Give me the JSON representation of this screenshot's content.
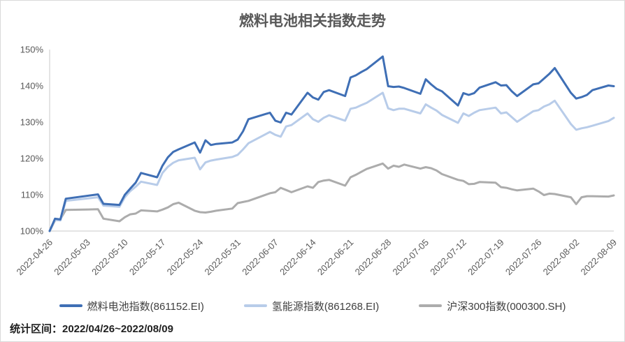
{
  "title": "燃料电池相关指数走势",
  "footer": {
    "text": "统计区间：2022/04/26~2022/08/09"
  },
  "colors": {
    "fuel_cell": "#3F6FB5",
    "hydrogen": "#B8CCE9",
    "csi300": "#ACACAC",
    "axis_line": "#C8C8C8",
    "label_gray": "#595959"
  },
  "chart_data": {
    "type": "line",
    "title": "燃料电池相关指数走势",
    "unit": "%",
    "grid": false,
    "legend_position": "bottom",
    "ylim": [
      100,
      150
    ],
    "y_tick_labels": [
      "100%",
      "110%",
      "120%",
      "130%",
      "140%",
      "150%"
    ],
    "x_tick_labels": [
      "2022-04-26",
      "2022-05-03",
      "2022-05-10",
      "2022-05-17",
      "2022-05-24",
      "2022-05-31",
      "2022-06-07",
      "2022-06-14",
      "2022-06-21",
      "2022-06-28",
      "2022-07-05",
      "2022-07-12",
      "2022-07-19",
      "2022-07-26",
      "2022-08-02",
      "2022-08-09"
    ],
    "x": [
      "2022-04-26",
      "2022-04-27",
      "2022-04-28",
      "2022-04-29",
      "2022-05-05",
      "2022-05-06",
      "2022-05-09",
      "2022-05-10",
      "2022-05-11",
      "2022-05-12",
      "2022-05-13",
      "2022-05-16",
      "2022-05-17",
      "2022-05-18",
      "2022-05-19",
      "2022-05-20",
      "2022-05-23",
      "2022-05-24",
      "2022-05-25",
      "2022-05-26",
      "2022-05-27",
      "2022-05-30",
      "2022-05-31",
      "2022-06-01",
      "2022-06-02",
      "2022-06-06",
      "2022-06-07",
      "2022-06-08",
      "2022-06-09",
      "2022-06-10",
      "2022-06-13",
      "2022-06-14",
      "2022-06-15",
      "2022-06-16",
      "2022-06-17",
      "2022-06-20",
      "2022-06-21",
      "2022-06-22",
      "2022-06-23",
      "2022-06-24",
      "2022-06-27",
      "2022-06-28",
      "2022-06-29",
      "2022-06-30",
      "2022-07-01",
      "2022-07-04",
      "2022-07-05",
      "2022-07-06",
      "2022-07-07",
      "2022-07-08",
      "2022-07-11",
      "2022-07-12",
      "2022-07-13",
      "2022-07-14",
      "2022-07-15",
      "2022-07-18",
      "2022-07-19",
      "2022-07-20",
      "2022-07-21",
      "2022-07-22",
      "2022-07-25",
      "2022-07-26",
      "2022-07-27",
      "2022-07-28",
      "2022-07-29",
      "2022-08-01",
      "2022-08-02",
      "2022-08-03",
      "2022-08-04",
      "2022-08-05",
      "2022-08-08",
      "2022-08-09"
    ],
    "series": [
      {
        "name": "燃料电池指数(861152.EI)",
        "color": "#3F6FB5",
        "values": [
          100.0,
          103.4,
          103.2,
          108.9,
          110.1,
          107.5,
          107.2,
          110.0,
          111.7,
          113.3,
          116.0,
          114.8,
          118.0,
          120.3,
          121.8,
          122.5,
          124.4,
          121.6,
          125.0,
          123.7,
          124.0,
          124.4,
          125.2,
          127.5,
          130.8,
          132.6,
          130.4,
          129.9,
          132.6,
          132.1,
          138.1,
          136.8,
          136.2,
          138.3,
          138.8,
          137.2,
          142.3,
          142.9,
          143.8,
          144.6,
          148.1,
          139.9,
          139.7,
          139.8,
          139.4,
          137.8,
          141.8,
          140.4,
          139.2,
          138.5,
          134.6,
          138.0,
          137.5,
          138.0,
          139.5,
          141.0,
          140.1,
          140.2,
          138.5,
          137.2,
          140.4,
          140.7,
          142.0,
          143.3,
          144.9,
          138.1,
          136.5,
          136.9,
          137.5,
          138.8,
          140.1,
          139.9
        ]
      },
      {
        "name": "氢能源指数(861268.EI)",
        "color": "#B8CCE9",
        "values": [
          100.0,
          103.1,
          102.9,
          108.3,
          109.3,
          107.0,
          106.7,
          109.3,
          111.0,
          112.2,
          113.6,
          112.7,
          116.0,
          117.7,
          118.8,
          119.5,
          120.2,
          117.0,
          118.9,
          119.4,
          119.7,
          120.4,
          121.0,
          122.5,
          124.2,
          127.3,
          126.5,
          126.0,
          128.8,
          129.2,
          132.4,
          130.8,
          130.1,
          131.2,
          131.9,
          130.4,
          133.7,
          134.0,
          134.7,
          135.3,
          138.1,
          133.8,
          133.3,
          133.7,
          133.7,
          132.4,
          134.9,
          134.0,
          133.2,
          132.0,
          129.8,
          132.4,
          131.7,
          132.6,
          133.3,
          134.0,
          132.4,
          132.7,
          131.4,
          130.1,
          133.0,
          133.3,
          134.3,
          134.9,
          135.9,
          129.5,
          127.9,
          128.3,
          128.6,
          129.0,
          130.3,
          131.2
        ]
      },
      {
        "name": "沪深300指数(000300.SH)",
        "color": "#ACACAC",
        "values": [
          100.0,
          102.9,
          103.3,
          105.8,
          106.0,
          103.4,
          102.7,
          103.8,
          104.6,
          104.8,
          105.7,
          105.4,
          105.9,
          106.5,
          107.4,
          107.8,
          105.6,
          105.2,
          105.1,
          105.3,
          105.6,
          106.2,
          107.7,
          108.0,
          108.3,
          110.4,
          110.7,
          111.9,
          111.3,
          110.7,
          112.3,
          111.9,
          113.5,
          113.9,
          114.1,
          112.5,
          114.8,
          115.5,
          116.3,
          117.1,
          118.6,
          117.2,
          118.0,
          117.7,
          118.3,
          117.2,
          117.6,
          117.3,
          116.7,
          115.7,
          114.1,
          113.8,
          112.9,
          113.0,
          113.5,
          113.3,
          112.1,
          111.9,
          111.5,
          111.2,
          111.7,
          110.9,
          109.9,
          110.3,
          110.2,
          109.3,
          107.4,
          109.3,
          109.6,
          109.6,
          109.5,
          109.8
        ]
      }
    ]
  }
}
